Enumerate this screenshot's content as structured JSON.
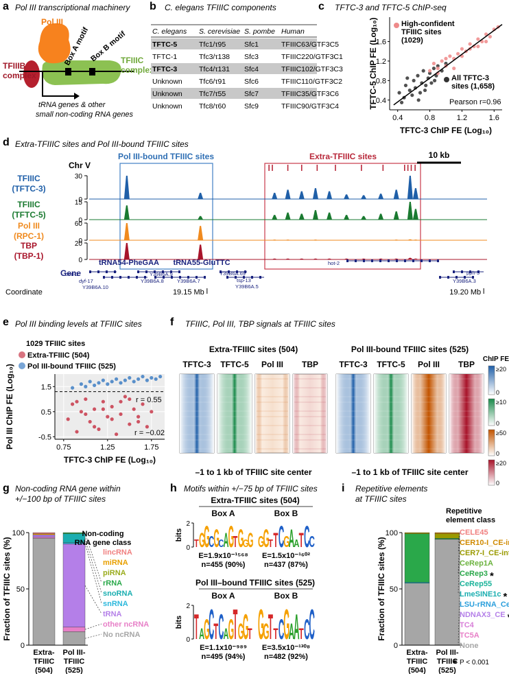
{
  "a": {
    "letter": "a",
    "title": "Pol III transcriptional machinery",
    "pol3": "Pol III",
    "box_a": "Box A motif",
    "box_b": "Box B motif",
    "tfiiib": [
      "TFIIIB",
      "complex"
    ],
    "tfiiic": [
      "TFIIIC",
      "complex"
    ],
    "genes": [
      "tRNA genes & other",
      "small non-coding RNA genes"
    ]
  },
  "b": {
    "letter": "b",
    "title": "C. elegans TFIIIC components",
    "columns": [
      "C. elegans",
      "S. cerevisiae",
      "S. pombe",
      "Human"
    ],
    "rows": [
      [
        "TFTC-5",
        "Tfc1/τ95",
        "Sfc1",
        "TFIIIC63/GTF3C5"
      ],
      [
        "TFTC-1",
        "Tfc3/τ138",
        "Sfc3",
        "TFIIIC220/GTF3C1"
      ],
      [
        "TFTC-3",
        "Tfc4/τ131",
        "Sfc4",
        "TFIIIC102/GTF3C3"
      ],
      [
        "Unknown",
        "Tfc6/τ91",
        "Sfc6",
        "TFIIIC110/GTF3C2"
      ],
      [
        "Unknown",
        "Tfc7/τ55",
        "Sfc7",
        "TFIIIC35/GTF3C6"
      ],
      [
        "Unknown",
        "Tfc8/τ60",
        "Sfc9",
        "TFIIIC90/GTF3C4"
      ]
    ],
    "highlight_rows": [
      0,
      2,
      4
    ],
    "bold_rows": [
      0,
      2
    ]
  },
  "c": {
    "letter": "c",
    "title": "TFTC-3 and TFTC-5 ChIP-seq",
    "chart_data": {
      "type": "scatter",
      "xlabel": "TFTC-3 ChIP FE (Log₁₀)",
      "ylabel": "TFTC-5 ChIP FE (Log₁₀)",
      "xlim": [
        0.3,
        1.7
      ],
      "ylim": [
        0.2,
        2.1
      ],
      "xticks": [
        0.4,
        0.8,
        1.2,
        1.6
      ],
      "yticks": [
        0.4,
        0.8,
        1.2,
        1.6
      ],
      "series": [
        {
          "name": "All TFTC-3 sites (1,658)",
          "color": "#333333",
          "x": [
            0.42,
            0.48,
            0.5,
            0.55,
            0.58,
            0.6,
            0.62,
            0.65,
            0.68,
            0.7,
            0.72,
            0.75,
            0.78,
            0.8,
            0.82,
            0.85,
            0.88,
            0.9,
            0.95,
            1.0,
            0.52,
            0.66,
            0.74,
            0.86,
            0.45
          ],
          "values": [
            0.55,
            0.45,
            0.7,
            0.6,
            0.5,
            0.8,
            0.65,
            0.9,
            0.55,
            0.75,
            1.0,
            0.7,
            0.85,
            0.95,
            0.75,
            1.05,
            0.9,
            1.1,
            1.0,
            1.15,
            0.85,
            0.4,
            0.6,
            0.8,
            0.35
          ]
        },
        {
          "name": "High-confident TFIIIC sites (1029)",
          "color": "#ee8a8a",
          "x": [
            0.8,
            0.85,
            0.9,
            0.95,
            1.0,
            1.05,
            1.1,
            1.15,
            1.2,
            1.25,
            1.3,
            1.35,
            1.4,
            1.45,
            1.5,
            1.55,
            1.6,
            1.65,
            1.0,
            1.1,
            1.2,
            1.3,
            1.4,
            1.5,
            0.9
          ],
          "values": [
            1.0,
            1.15,
            0.95,
            1.2,
            1.1,
            1.3,
            1.25,
            1.35,
            1.45,
            1.4,
            1.55,
            1.5,
            1.65,
            1.6,
            1.75,
            1.7,
            1.85,
            1.9,
            1.25,
            1.05,
            1.3,
            1.45,
            1.5,
            1.6,
            1.05
          ]
        }
      ],
      "fit_line": {
        "x": [
          0.35,
          1.7
        ],
        "values": [
          0.3,
          1.95
        ]
      },
      "annotation": "Pearson r=0.96"
    }
  },
  "d": {
    "letter": "d",
    "title": "Extra-TFIIIC sites and Pol III-bound TFIIIC sites",
    "chr": "Chr V",
    "pol3_box": "Pol III-bound TFIIIC sites",
    "extra_box": "Extra-TFIIIC sites",
    "scale_bar": "10 kb",
    "xlim": [
      19.1287,
      19.2006
    ],
    "xticks": [
      {
        "value": 19.15,
        "label": "19.15 Mb"
      },
      {
        "value": 19.2,
        "label": "19.20 Mb"
      }
    ],
    "coordinate_label": "Coordinate",
    "extra_sites": [
      19.1612,
      19.1618,
      19.1646,
      19.1671,
      19.1699,
      19.1732,
      19.1779,
      19.1818,
      19.1857,
      19.1863,
      19.1869,
      19.1876
    ],
    "peaks_x": [
      19.1355,
      19.1488,
      19.1622,
      19.1646,
      19.1671,
      19.1696,
      19.1721,
      19.1752,
      19.1783,
      19.1814,
      19.1842,
      19.1867,
      19.1877
    ],
    "tracks": [
      {
        "name": [
          "TFIIIC",
          "(TFTC-3)"
        ],
        "color": "#1f5fa8",
        "ylim": [
          0,
          30
        ],
        "yticks": [
          0,
          30
        ],
        "values": [
          30,
          8,
          8,
          12,
          10,
          14,
          10,
          6,
          5,
          7,
          12,
          30,
          14
        ]
      },
      {
        "name": [
          "TFIIIC",
          "(TFTC-5)"
        ],
        "color": "#1a7a30",
        "ylim": [
          0,
          15
        ],
        "yticks": [
          0,
          15
        ],
        "values": [
          12,
          3,
          4,
          6,
          5,
          8,
          6,
          4,
          3,
          5,
          7,
          15,
          9
        ]
      },
      {
        "name": [
          "Pol III",
          "(RPC-1)"
        ],
        "color": "#f08a1e",
        "ylim": [
          0,
          60
        ],
        "yticks": [
          0,
          60
        ],
        "values": [
          60,
          50,
          2,
          2,
          1,
          2,
          1,
          1,
          1,
          1,
          2,
          3,
          2
        ]
      },
      {
        "name": [
          "TBP",
          "(TBP-1)"
        ],
        "color": "#a8142a",
        "ylim": [
          0,
          20
        ],
        "yticks": [
          0,
          20
        ],
        "values": [
          20,
          18,
          1,
          1,
          1,
          1,
          1,
          1,
          1,
          1,
          1,
          2,
          1
        ]
      }
    ],
    "trna_labels": [
      "tRNA54-PheGAA",
      "tRNA55-GluTTC"
    ],
    "gene_label": "Gene",
    "genes": [
      "bed-1",
      "dyf-17",
      "Y39B6A.10",
      "Y39B6A.9",
      "Y39B6A.8",
      "Y39B6A.7",
      "Y39B6A.69",
      "tsp-13",
      "Y39B6A.5",
      "hot-2",
      "pph-5",
      "Y39B6A.3"
    ]
  },
  "e": {
    "letter": "e",
    "title": "Pol III binding levels at TFIIIC sites",
    "legend_title": "1029 TFIIIC sites",
    "chart_data": {
      "type": "scatter",
      "xlabel": "TFTC-3 ChIP FE (Log₁₀)",
      "ylabel": "Pol III ChIP FE (Log₁₀)",
      "xlim": [
        0.65,
        1.9
      ],
      "ylim": [
        -0.6,
        2.0
      ],
      "xticks": [
        0.75,
        1.25,
        1.75
      ],
      "yticks": [
        -0.5,
        0.5,
        1.5
      ],
      "grid": true,
      "threshold": 1.3,
      "series": [
        {
          "name": "Extra-TFIIIC (504)",
          "color": "#c8384a",
          "annotation": "r = −0.02",
          "x": [
            0.8,
            0.85,
            0.9,
            0.95,
            1.0,
            1.05,
            1.1,
            1.15,
            1.2,
            1.25,
            1.3,
            1.35,
            1.4,
            1.45,
            1.5,
            1.55,
            1.6,
            1.65,
            1.7,
            1.75,
            0.9,
            1.0,
            1.1,
            1.2,
            1.3,
            1.4,
            1.5,
            1.6
          ],
          "values": [
            0.2,
            0.8,
            -0.3,
            0.5,
            1.0,
            0.1,
            0.6,
            -0.2,
            0.9,
            0.3,
            0.7,
            -0.4,
            0.4,
            1.1,
            0.0,
            0.6,
            0.3,
            0.8,
            -0.1,
            0.5,
            0.9,
            0.4,
            -0.1,
            0.6,
            0.2,
            0.9,
            1.0,
            0.1
          ]
        },
        {
          "name": "Pol III-bound TFIIIC (525)",
          "color": "#3f7fc4",
          "annotation": "r = 0.55",
          "x": [
            0.85,
            0.95,
            1.0,
            1.05,
            1.1,
            1.15,
            1.2,
            1.25,
            1.3,
            1.35,
            1.4,
            1.45,
            1.5,
            1.55,
            1.6,
            1.65,
            1.7,
            1.75,
            1.8,
            1.85
          ],
          "values": [
            1.45,
            1.6,
            1.5,
            1.7,
            1.55,
            1.65,
            1.75,
            1.6,
            1.7,
            1.8,
            1.65,
            1.75,
            1.85,
            1.7,
            1.8,
            1.9,
            1.75,
            1.85,
            1.8,
            1.9
          ]
        }
      ]
    }
  },
  "f": {
    "letter": "f",
    "title": "TFIIIC, Pol III, TBP signals at TFIIIC sites",
    "groups": [
      {
        "title": "Extra-TFIIIC sites (504)",
        "columns": [
          "TFTC-3",
          "TFTC-5",
          "Pol III",
          "TBP"
        ],
        "footer": "–1 to 1 kb of TFIIIC site center"
      },
      {
        "title": "Pol III-bound TFIIIC sites (525)",
        "columns": [
          "TFTC-3",
          "TFTC-5",
          "Pol III",
          "TBP"
        ],
        "footer": "–1 to 1 kb of TFIIIC site center"
      }
    ],
    "colorbar_title": "ChIP FE",
    "colorbars": [
      {
        "color": "#1f5fa8",
        "max_label": "≥20",
        "min_label": "0"
      },
      {
        "color": "#1a8a4a",
        "max_label": "≥10",
        "min_label": "0"
      },
      {
        "color": "#c25400",
        "max_label": "≥50",
        "min_label": "0"
      },
      {
        "color": "#a8142a",
        "max_label": "≥20",
        "min_label": "0"
      }
    ]
  },
  "g": {
    "letter": "g",
    "title": [
      "Non-coding RNA gene within",
      "+/−100 bp of TFIIIC sites"
    ],
    "chart_data": {
      "type": "stacked_bar",
      "ylabel": "Fraction of TFIIIC sites (%)",
      "legend_title": [
        "Non-coding",
        "RNA gene class"
      ],
      "categories": [
        [
          "Extra-",
          "TFIIIC",
          "(504)"
        ],
        [
          "Pol III-",
          "TFIIIC",
          "(525)"
        ]
      ],
      "ylim": [
        0,
        100
      ],
      "yticks": [
        0,
        50,
        100
      ],
      "series": [
        {
          "name": "No ncRNA",
          "color": "#a6a6a6",
          "values": [
            95,
            12
          ]
        },
        {
          "name": "other ncRNA",
          "color": "#e77fc7",
          "values": [
            1,
            4
          ]
        },
        {
          "name": "tRNA",
          "color": "#b47fe8",
          "values": [
            2,
            74
          ]
        },
        {
          "name": "snRNA",
          "color": "#2bb8dc",
          "values": [
            0,
            1
          ]
        },
        {
          "name": "snoRNA",
          "color": "#1aaeb0",
          "values": [
            0,
            8
          ]
        },
        {
          "name": "rRNA",
          "color": "#2aa84a",
          "values": [
            0,
            1
          ]
        },
        {
          "name": "piRNA",
          "color": "#9aac1d",
          "values": [
            0,
            0
          ]
        },
        {
          "name": "miRNA",
          "color": "#e8a000",
          "values": [
            1,
            0
          ]
        },
        {
          "name": "lincRNA",
          "color": "#f08080",
          "values": [
            1,
            0
          ]
        }
      ]
    }
  },
  "h": {
    "letter": "h",
    "title": "Motifs within +/−75 bp of TFIIIC sites",
    "groups": [
      {
        "title": "Extra-TFIIIC sites (504)",
        "ylabel": "bits",
        "yticks": [
          0,
          2
        ],
        "motifs": [
          {
            "title": "Box A",
            "logo": "TGGCGCAGTGGG",
            "evalue": "E=1.9x10⁻¹⁵⁶⁸",
            "n": "n=455 (90%)"
          },
          {
            "title": "Box B",
            "logo": "GGTTCGAATCC",
            "evalue": "E=1.5x10⁻¹⁶⁰²",
            "n": "n=437 (87%)"
          }
        ]
      },
      {
        "title": "Pol III–bound TFIIIC sites (525)",
        "ylabel": "bits",
        "yticks": [
          0,
          2
        ],
        "motifs": [
          {
            "title": "Box A",
            "logo": "TAGCTCAGTGGT",
            "evalue": "E=1.1x10⁻⁹⁸⁹",
            "n": "n=495 (94%)"
          },
          {
            "title": "Box B",
            "logo": "GGTTCGAATCC",
            "evalue": "E=3.5x10⁻¹³⁰⁸",
            "n": "n=482 (92%)"
          }
        ]
      }
    ]
  },
  "i": {
    "letter": "i",
    "title": [
      "Repetitive elements",
      "at TFIIIC sites"
    ],
    "footnote": {
      "symbol": "*",
      "text": "P < 0.001"
    },
    "chart_data": {
      "type": "stacked_bar",
      "ylabel": "Fraction of TFIIIC sites (%)",
      "legend_title": [
        "Repetitive",
        "element class"
      ],
      "categories": [
        [
          "Extra-",
          "TFIIIC",
          "(504)"
        ],
        [
          "Pol III-",
          "TFIIIC",
          "(525)"
        ]
      ],
      "ylim": [
        0,
        100
      ],
      "yticks": [
        0,
        50,
        100
      ],
      "series": [
        {
          "name": "None",
          "color": "#a6a6a6",
          "values": [
            55,
            94
          ],
          "star": false
        },
        {
          "name": "TC5A",
          "color": "#e77fc7",
          "values": [
            0,
            0
          ],
          "star": false
        },
        {
          "name": "TC4",
          "color": "#d87fd8",
          "values": [
            0,
            0
          ],
          "star": false
        },
        {
          "name": "NDNAX3_CE",
          "color": "#b47fe8",
          "values": [
            0,
            0
          ],
          "star": true
        },
        {
          "name": "LSU-rRNA_Cel",
          "color": "#2b9fdc",
          "values": [
            0,
            0
          ],
          "star": true
        },
        {
          "name": "LmeSINE1c",
          "color": "#1aaeb0",
          "values": [
            1,
            0
          ],
          "star": true
        },
        {
          "name": "CeRep55",
          "color": "#1ab39a",
          "values": [
            0,
            0
          ],
          "star": false
        },
        {
          "name": "CeRep3",
          "color": "#2aa84a",
          "values": [
            43,
            1
          ],
          "star": true
        },
        {
          "name": "CeRep1A",
          "color": "#6cb33f",
          "values": [
            0,
            0
          ],
          "star": false
        },
        {
          "name": "CER7-I_CE-int",
          "color": "#9a9a00",
          "values": [
            1,
            4
          ],
          "star": true
        },
        {
          "name": "CER10-I_CE-int",
          "color": "#d08a00",
          "values": [
            0,
            1
          ],
          "star": false
        },
        {
          "name": "CELE45",
          "color": "#f08080",
          "values": [
            0,
            0
          ],
          "star": false
        }
      ]
    }
  }
}
